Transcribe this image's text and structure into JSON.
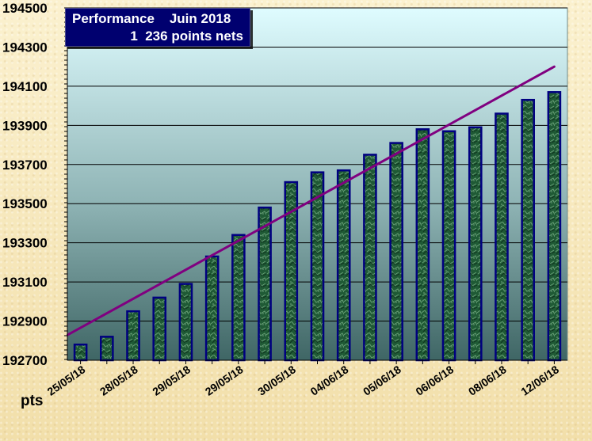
{
  "chart_data": {
    "type": "bar",
    "title": "Performance    Juin 2018",
    "subtitle": "1  236 points nets",
    "ylabel": "pts",
    "xlabel": "",
    "ylim": [
      192700,
      194500
    ],
    "yticks": [
      192700,
      192900,
      193100,
      193300,
      193500,
      193700,
      193900,
      194100,
      194300,
      194500
    ],
    "categories": [
      "25/05/18",
      "",
      "28/05/18",
      "",
      "29/05/18",
      "",
      "29/05/18",
      "",
      "30/05/18",
      "",
      "04/06/18",
      "",
      "05/06/18",
      "",
      "06/06/18",
      "",
      "08/06/18",
      "",
      "12/06/18"
    ],
    "x_tick_labels": [
      "25/05/18",
      "28/05/18",
      "29/05/18",
      "29/05/18",
      "30/05/18",
      "04/06/18",
      "05/06/18",
      "06/06/18",
      "08/06/18",
      "12/06/18"
    ],
    "values": [
      192780,
      192820,
      192950,
      193020,
      193090,
      193230,
      193340,
      193480,
      193610,
      193660,
      193670,
      193750,
      193810,
      193880,
      193870,
      193890,
      193960,
      194030,
      194070
    ],
    "trendline": {
      "start": 192830,
      "end": 194200
    },
    "grid": true,
    "legend": "none"
  },
  "colors": {
    "page_background": "#f6e8b8",
    "plot_top": "#dffcff",
    "plot_bottom": "#2f4f4f",
    "bar_fill": "#1f5a35",
    "bar_border": "#000080",
    "trend": "#800080",
    "grid": "#000000",
    "title_background": "#00006f",
    "title_text": "#ffffff"
  }
}
